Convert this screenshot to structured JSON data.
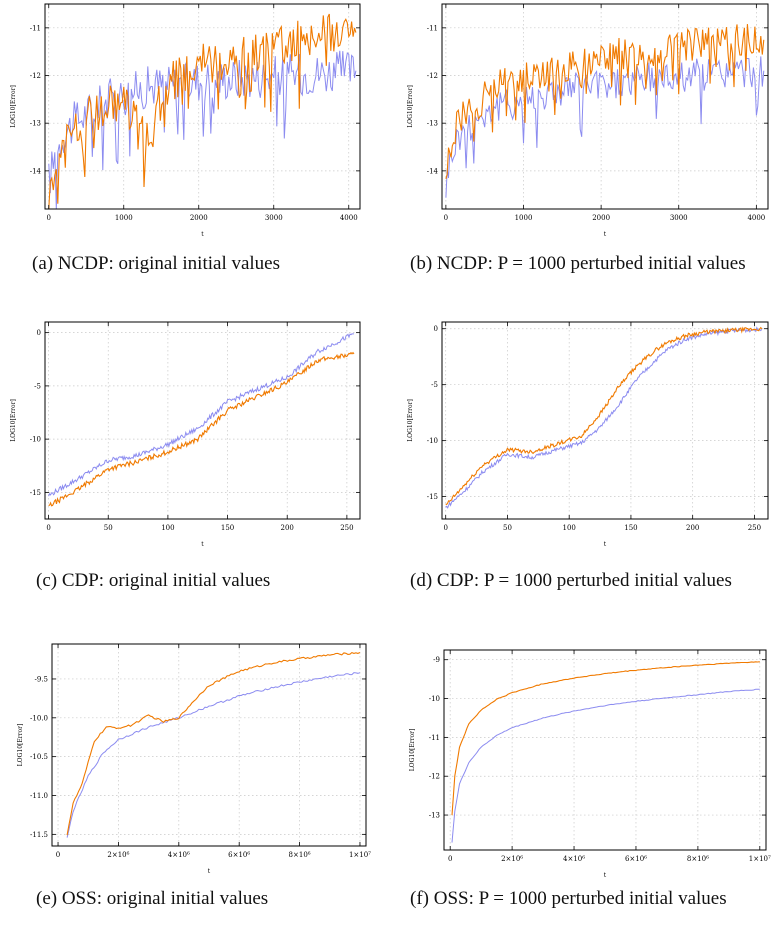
{
  "figures": [
    {
      "caption": "(a) NCDP: original initial values"
    },
    {
      "caption": "(b) NCDP: P = 1000 perturbed initial values"
    },
    {
      "caption": "(c) CDP: original initial values"
    },
    {
      "caption": "(d) CDP: P = 1000 perturbed initial values"
    },
    {
      "caption": "(e) OSS: original initial values"
    },
    {
      "caption": "(f) OSS: P = 1000 perturbed initial values"
    }
  ],
  "colors": {
    "series_a": "#8c8cf0",
    "series_b": "#f07a00"
  },
  "chart_data": [
    {
      "type": "line",
      "xlabel": "t",
      "ylabel": "LOG10[Error]",
      "xlim": [
        -50,
        4150
      ],
      "ylim": [
        -14.8,
        -10.5
      ],
      "xticks": [
        0,
        1000,
        2000,
        3000,
        4000
      ],
      "xtick_labels": [
        "0",
        "1000",
        "2000",
        "3000",
        "4000"
      ],
      "yticks": [
        -14,
        -13,
        -12,
        -11
      ],
      "ytick_labels": [
        "-14",
        "-13",
        "-12",
        "-11"
      ],
      "grid": true,
      "series": [
        {
          "color": "#8c8cf0",
          "x": [
            0,
            100,
            200,
            400,
            600,
            800,
            1000,
            1200,
            1400,
            1600,
            1800,
            2000,
            2500,
            3000,
            3500,
            4000,
            4096
          ],
          "y": [
            -14.2,
            -13.6,
            -13.2,
            -12.9,
            -12.7,
            -12.5,
            -12.4,
            -12.3,
            -12.2,
            -12.2,
            -12.15,
            -12.1,
            -12.05,
            -12.0,
            -11.95,
            -11.9,
            -11.9
          ]
        },
        {
          "color": "#f07a00",
          "x": [
            0,
            100,
            200,
            400,
            600,
            800,
            1000,
            1150,
            1250,
            1350,
            1450,
            1600,
            1800,
            2000,
            2500,
            3000,
            3500,
            4000,
            4096
          ],
          "y": [
            -14.5,
            -13.7,
            -13.3,
            -13.0,
            -12.8,
            -12.6,
            -12.6,
            -12.8,
            -13.2,
            -13.5,
            -12.6,
            -12.2,
            -12.0,
            -11.8,
            -11.6,
            -11.4,
            -11.2,
            -11.0,
            -11.1
          ]
        }
      ]
    },
    {
      "type": "line",
      "xlabel": "t",
      "ylabel": "LOG10[Error]",
      "xlim": [
        -50,
        4150
      ],
      "ylim": [
        -14.8,
        -10.5
      ],
      "xticks": [
        0,
        1000,
        2000,
        3000,
        4000
      ],
      "xtick_labels": [
        "0",
        "1000",
        "2000",
        "3000",
        "4000"
      ],
      "yticks": [
        -14,
        -13,
        -12,
        -11
      ],
      "ytick_labels": [
        "-14",
        "-13",
        "-12",
        "-11"
      ],
      "grid": true,
      "series": [
        {
          "color": "#8c8cf0",
          "x": [
            0,
            50,
            100,
            200,
            400,
            600,
            800,
            1000,
            1500,
            2000,
            2500,
            3000,
            3500,
            4000,
            4096
          ],
          "y": [
            -14.3,
            -13.8,
            -13.5,
            -13.2,
            -12.9,
            -12.7,
            -12.6,
            -12.5,
            -12.3,
            -12.2,
            -12.1,
            -12.0,
            -11.95,
            -11.9,
            -11.9
          ]
        },
        {
          "color": "#f07a00",
          "x": [
            0,
            50,
            100,
            200,
            400,
            600,
            800,
            1000,
            1500,
            2000,
            2500,
            3000,
            3500,
            4000,
            4096
          ],
          "y": [
            -14.1,
            -13.6,
            -13.2,
            -12.9,
            -12.6,
            -12.3,
            -12.1,
            -12.0,
            -11.8,
            -11.6,
            -11.5,
            -11.4,
            -11.3,
            -11.2,
            -11.25
          ]
        }
      ]
    },
    {
      "type": "line",
      "xlabel": "t",
      "ylabel": "LOG10[Error]",
      "xlim": [
        -3,
        261
      ],
      "ylim": [
        -17.5,
        1.0
      ],
      "xticks": [
        0,
        50,
        100,
        150,
        200,
        250
      ],
      "xtick_labels": [
        "0",
        "50",
        "100",
        "150",
        "200",
        "250"
      ],
      "yticks": [
        -15,
        -10,
        -5,
        0
      ],
      "ytick_labels": [
        "-15",
        "-10",
        "-5",
        "0"
      ],
      "grid": true,
      "series": [
        {
          "color": "#8c8cf0",
          "x": [
            0,
            25,
            50,
            75,
            100,
            125,
            150,
            175,
            200,
            225,
            256
          ],
          "y": [
            -15.3,
            -13.7,
            -12.0,
            -11.5,
            -10.5,
            -9.0,
            -6.5,
            -5.3,
            -4.2,
            -1.8,
            -0.1
          ]
        },
        {
          "color": "#f07a00",
          "x": [
            0,
            25,
            50,
            75,
            100,
            125,
            150,
            175,
            200,
            225,
            256
          ],
          "y": [
            -16.3,
            -14.7,
            -12.8,
            -12.1,
            -11.2,
            -10.0,
            -7.3,
            -6.0,
            -4.7,
            -2.6,
            -2.0
          ]
        }
      ]
    },
    {
      "type": "line",
      "xlabel": "t",
      "ylabel": "LOG10[Error]",
      "xlim": [
        -3,
        261
      ],
      "ylim": [
        -17.0,
        0.6
      ],
      "xticks": [
        0,
        50,
        100,
        150,
        200,
        250
      ],
      "xtick_labels": [
        "0",
        "50",
        "100",
        "150",
        "200",
        "250"
      ],
      "yticks": [
        -15,
        -10,
        -5,
        0
      ],
      "ytick_labels": [
        "-15",
        "-10",
        "-5",
        "0"
      ],
      "grid": true,
      "series": [
        {
          "color": "#8c8cf0",
          "x": [
            0,
            15,
            30,
            50,
            70,
            90,
            110,
            125,
            140,
            155,
            170,
            180,
            195,
            210,
            230,
            256
          ],
          "y": [
            -16.0,
            -14.5,
            -12.8,
            -11.2,
            -11.5,
            -10.8,
            -10.2,
            -8.8,
            -6.8,
            -4.5,
            -2.8,
            -1.8,
            -0.9,
            -0.5,
            -0.2,
            -0.05
          ]
        },
        {
          "color": "#f07a00",
          "x": [
            0,
            15,
            30,
            50,
            70,
            90,
            110,
            125,
            140,
            155,
            170,
            180,
            195,
            210,
            230,
            256
          ],
          "y": [
            -15.8,
            -14.0,
            -12.2,
            -10.8,
            -11.0,
            -10.3,
            -9.6,
            -7.6,
            -5.2,
            -3.3,
            -1.9,
            -1.2,
            -0.6,
            -0.3,
            -0.15,
            -0.02
          ]
        }
      ]
    },
    {
      "type": "line",
      "xlabel": "t",
      "ylabel": "LOG10[Error]",
      "xlim": [
        -200000,
        10200000
      ],
      "ylim": [
        -11.65,
        -9.05
      ],
      "xticks": [
        0,
        2000000,
        4000000,
        6000000,
        8000000,
        10000000
      ],
      "xtick_labels": [
        "0",
        "2×10⁶",
        "4×10⁶",
        "6×10⁶",
        "8×10⁶",
        "1×10⁷"
      ],
      "yticks": [
        -11.5,
        -11.0,
        -10.5,
        -10.0,
        -9.5
      ],
      "ytick_labels": [
        "-11.5",
        "-11.0",
        "-10.5",
        "-10.0",
        "-9.5"
      ],
      "grid": true,
      "series": [
        {
          "color": "#8c8cf0",
          "x": [
            300000,
            500000,
            1000000,
            1500000,
            2000000,
            3000000,
            4000000,
            5000000,
            6000000,
            7000000,
            8000000,
            9000000,
            10000000
          ],
          "y": [
            -11.55,
            -11.2,
            -10.75,
            -10.45,
            -10.28,
            -10.12,
            -10.0,
            -9.85,
            -9.72,
            -9.62,
            -9.54,
            -9.47,
            -9.42
          ]
        },
        {
          "color": "#f07a00",
          "x": [
            300000,
            500000,
            800000,
            1200000,
            1600000,
            2000000,
            2400000,
            3000000,
            3500000,
            4000000,
            4500000,
            5000000,
            6000000,
            7000000,
            8000000,
            9000000,
            10000000
          ],
          "y": [
            -11.5,
            -11.1,
            -10.85,
            -10.3,
            -10.12,
            -10.13,
            -10.1,
            -9.97,
            -10.05,
            -10.0,
            -9.78,
            -9.58,
            -9.4,
            -9.3,
            -9.24,
            -9.19,
            -9.16
          ]
        }
      ]
    },
    {
      "type": "line",
      "xlabel": "t",
      "ylabel": "LOG10[Error]",
      "xlim": [
        -200000,
        10200000
      ],
      "ylim": [
        -13.9,
        -8.75
      ],
      "xticks": [
        0,
        2000000,
        4000000,
        6000000,
        8000000,
        10000000
      ],
      "xtick_labels": [
        "0",
        "2×10⁶",
        "4×10⁶",
        "6×10⁶",
        "8×10⁶",
        "1×10⁷"
      ],
      "yticks": [
        -13,
        -12,
        -11,
        -10,
        -9
      ],
      "ytick_labels": [
        "-13",
        "-12",
        "-11",
        "-10",
        "-9"
      ],
      "grid": true,
      "series": [
        {
          "color": "#8c8cf0",
          "x": [
            60000,
            150000,
            300000,
            600000,
            1000000,
            1500000,
            2000000,
            3000000,
            4000000,
            5000000,
            6000000,
            7000000,
            8000000,
            9000000,
            10000000
          ],
          "y": [
            -13.7,
            -12.9,
            -12.2,
            -11.65,
            -11.25,
            -10.95,
            -10.75,
            -10.5,
            -10.32,
            -10.18,
            -10.07,
            -9.98,
            -9.9,
            -9.82,
            -9.76
          ]
        },
        {
          "color": "#f07a00",
          "x": [
            60000,
            150000,
            300000,
            600000,
            1000000,
            1500000,
            2000000,
            3000000,
            4000000,
            5000000,
            6000000,
            7000000,
            8000000,
            9000000,
            10000000
          ],
          "y": [
            -13.0,
            -12.0,
            -11.25,
            -10.65,
            -10.3,
            -10.02,
            -9.85,
            -9.62,
            -9.47,
            -9.36,
            -9.27,
            -9.2,
            -9.14,
            -9.09,
            -9.05
          ]
        }
      ]
    }
  ]
}
